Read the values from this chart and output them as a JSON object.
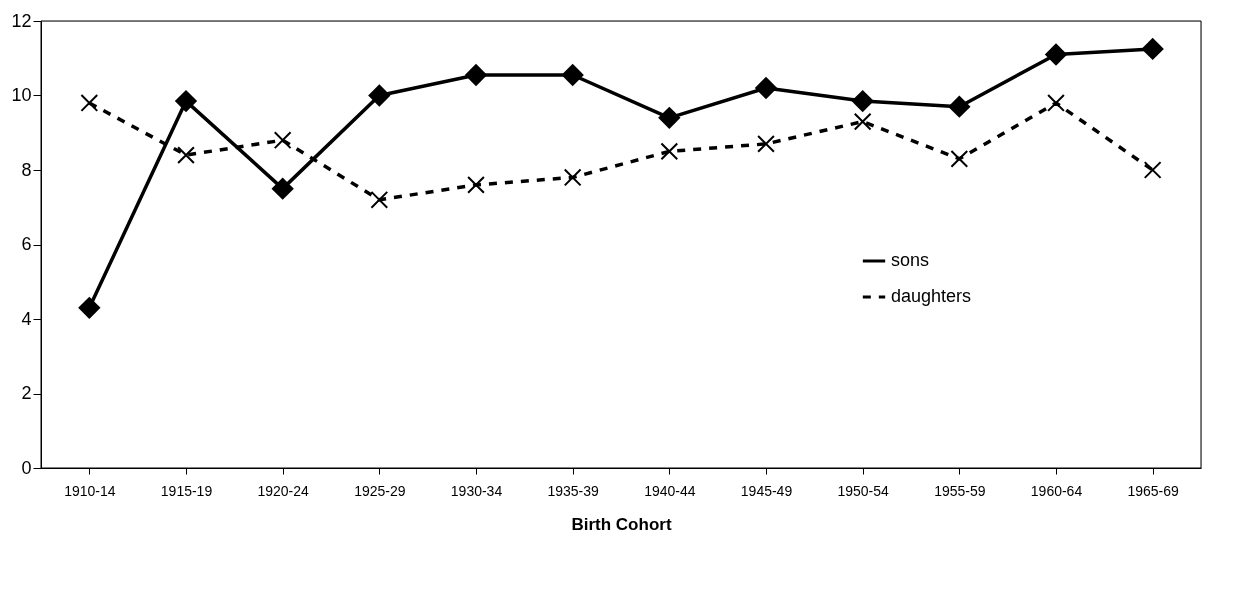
{
  "chart_data": {
    "type": "line",
    "xlabel": "Birth Cohort",
    "categories": [
      "1910-14",
      "1915-19",
      "1920-24",
      "1925-29",
      "1930-34",
      "1935-39",
      "1940-44",
      "1945-49",
      "1950-54",
      "1955-59",
      "1960-64",
      "1965-69"
    ],
    "series": [
      {
        "name": "sons",
        "color": "#000000",
        "marker": "diamond",
        "line_style": "solid",
        "values": [
          4.3,
          9.85,
          7.5,
          10.0,
          10.55,
          10.55,
          9.4,
          10.2,
          9.85,
          9.7,
          11.1,
          11.25
        ]
      },
      {
        "name": "daughters",
        "color": "#000000",
        "marker": "cross",
        "line_style": "dashed",
        "values": [
          9.8,
          8.4,
          8.8,
          7.2,
          7.6,
          7.8,
          8.5,
          8.7,
          9.3,
          8.3,
          9.8,
          8.0
        ]
      }
    ],
    "ylim": [
      0,
      12
    ],
    "yticks": [
      0,
      2,
      4,
      6,
      8,
      10,
      12
    ],
    "grid": false,
    "legend": "right"
  }
}
